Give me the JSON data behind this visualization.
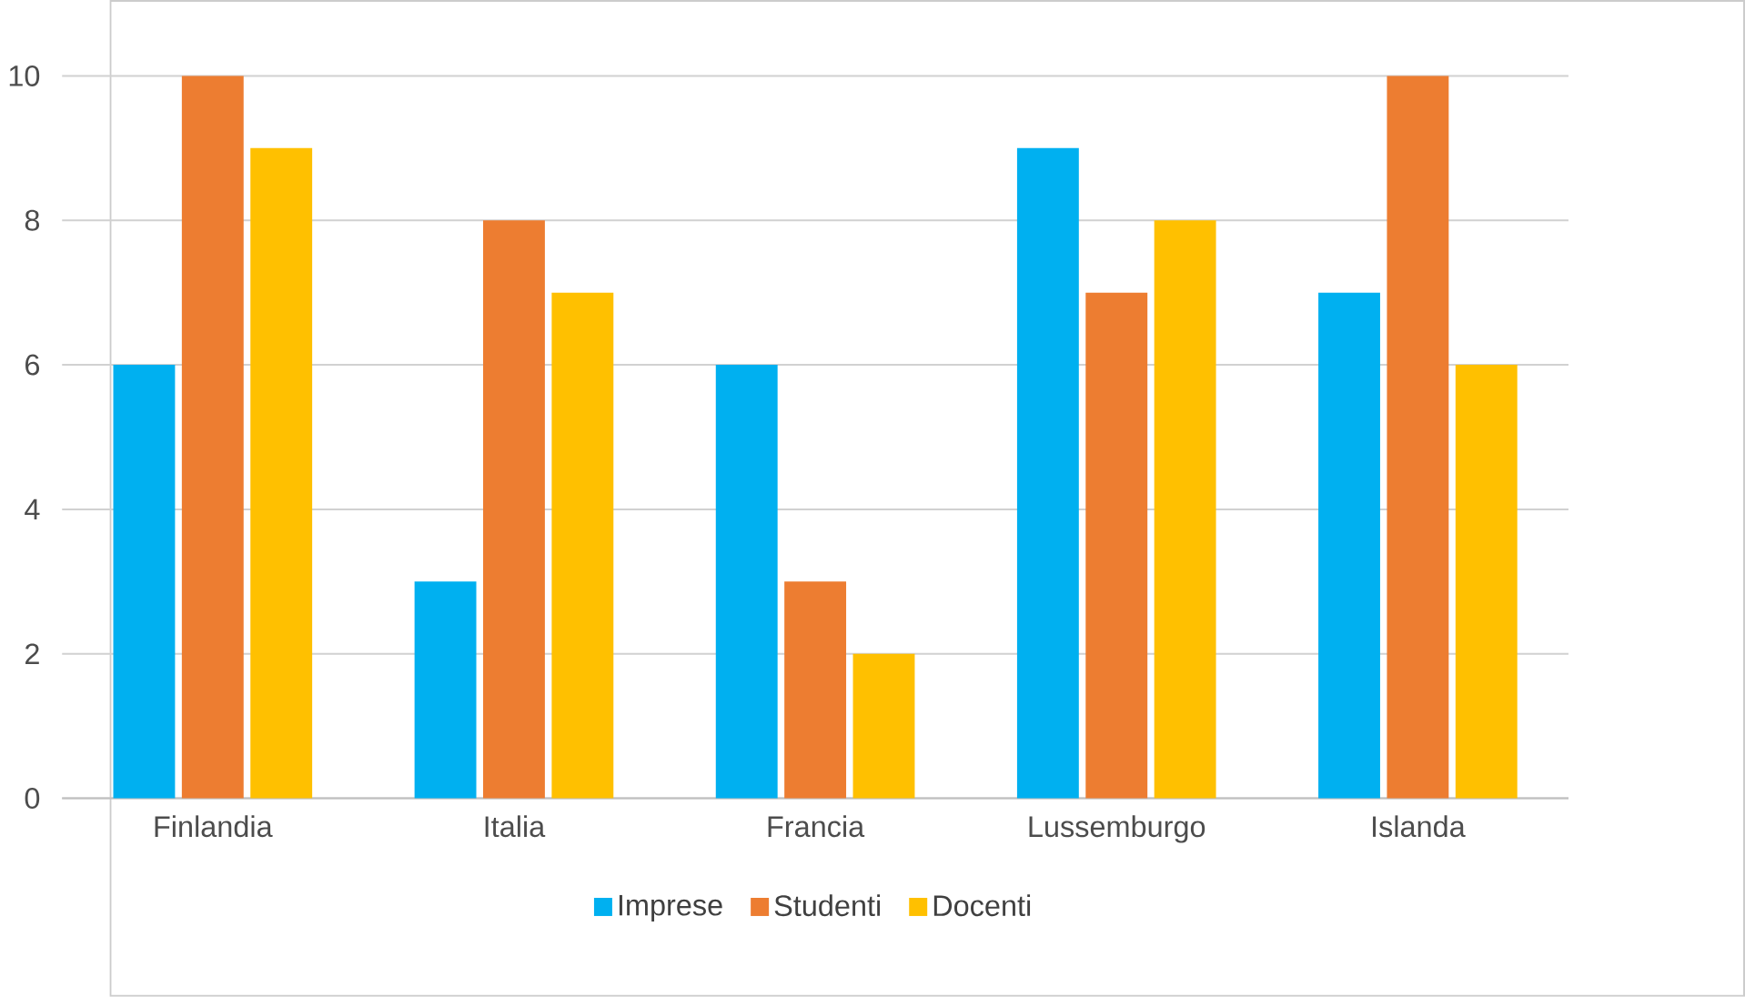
{
  "chart_data": {
    "type": "bar",
    "categories": [
      "Finlandia",
      "Italia",
      "Francia",
      "Lussemburgo",
      "Islanda"
    ],
    "series": [
      {
        "name": "Imprese",
        "color": "#00b0f0",
        "values": [
          6,
          3,
          6,
          9,
          7
        ]
      },
      {
        "name": "Studenti",
        "color": "#ed7d31",
        "values": [
          10,
          8,
          3,
          7,
          10
        ]
      },
      {
        "name": "Docenti",
        "color": "#ffc000",
        "values": [
          9,
          7,
          2,
          8,
          6
        ]
      }
    ],
    "ylim": [
      0,
      10
    ],
    "yticks": [
      0,
      2,
      4,
      6,
      8,
      10
    ],
    "grid": "y",
    "legend": "bottom"
  }
}
